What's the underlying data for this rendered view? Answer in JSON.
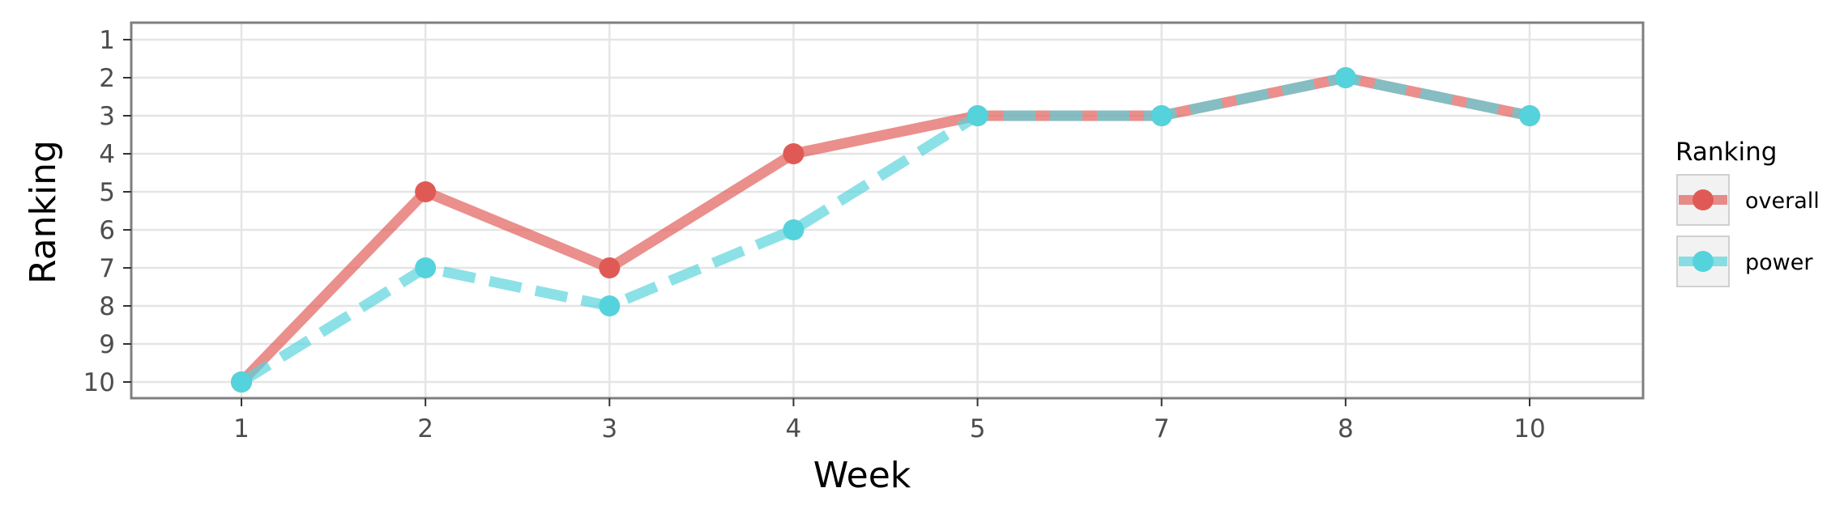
{
  "chart_data": {
    "type": "line",
    "xlabel": "Week",
    "ylabel": "Ranking",
    "categories": [
      "1",
      "2",
      "3",
      "4",
      "5",
      "7",
      "8",
      "10"
    ],
    "yticks": [
      "1",
      "2",
      "3",
      "4",
      "5",
      "6",
      "7",
      "8",
      "9",
      "10"
    ],
    "ylim": [
      10,
      1
    ],
    "y_reversed": true,
    "grid": true,
    "legend": {
      "title": "Ranking",
      "position": "right"
    },
    "series": [
      {
        "name": "overall",
        "color": "#e05a55",
        "line_style": "solid",
        "values": [
          10,
          5,
          7,
          4,
          3,
          3,
          2,
          3
        ]
      },
      {
        "name": "power",
        "color": "#55d3dc",
        "line_style": "dashed",
        "values": [
          10,
          7,
          8,
          6,
          3,
          3,
          2,
          3
        ]
      }
    ]
  }
}
